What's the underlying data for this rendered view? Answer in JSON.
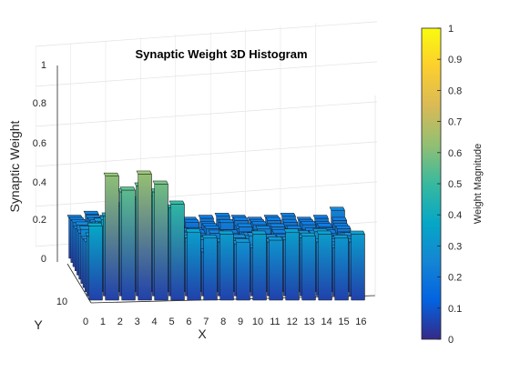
{
  "chart_data": {
    "type": "bar3",
    "title": "Synaptic Weight 3D Histogram",
    "xlabel": "X",
    "ylabel": "Y",
    "zlabel": "Synaptic Weight",
    "xlim": [
      0,
      16
    ],
    "ylim": [
      0,
      10
    ],
    "zlim": [
      0,
      1
    ],
    "x_ticks": [
      "0",
      "1",
      "2",
      "3",
      "4",
      "5",
      "6",
      "7",
      "8",
      "9",
      "10",
      "11",
      "12",
      "13",
      "14",
      "15",
      "16"
    ],
    "y_ticks": [
      "10"
    ],
    "z_ticks": [
      "0",
      "0.2",
      "0.4",
      "0.6",
      "0.8",
      "1"
    ],
    "colormap": "parula",
    "colorbar": {
      "label": "Weight Magnitude",
      "range": [
        0,
        1
      ],
      "ticks": [
        "0",
        "0.1",
        "0.2",
        "0.3",
        "0.4",
        "0.5",
        "0.6",
        "0.7",
        "0.8",
        "0.9",
        "1"
      ]
    },
    "grid": true,
    "rows": [
      [
        0.37,
        0.62,
        0.55,
        0.63,
        0.58,
        0.48,
        0.34,
        0.31,
        0.33,
        0.29,
        0.33,
        0.3,
        0.34,
        0.32,
        0.33,
        0.31,
        0.33
      ],
      [
        0.3,
        0.4,
        0.52,
        0.55,
        0.52,
        0.44,
        0.29,
        0.22,
        0.27,
        0.26,
        0.24,
        0.27,
        0.28,
        0.29,
        0.27,
        0.24,
        0.27
      ],
      [
        0.25,
        0.36,
        0.43,
        0.46,
        0.48,
        0.41,
        0.25,
        0.26,
        0.23,
        0.27,
        0.28,
        0.22,
        0.26,
        0.24,
        0.3,
        0.25,
        0.24
      ],
      [
        0.24,
        0.31,
        0.38,
        0.39,
        0.41,
        0.38,
        0.23,
        0.2,
        0.22,
        0.23,
        0.21,
        0.25,
        0.22,
        0.27,
        0.22,
        0.23,
        0.26
      ],
      [
        0.27,
        0.28,
        0.33,
        0.32,
        0.35,
        0.32,
        0.24,
        0.22,
        0.2,
        0.21,
        0.24,
        0.2,
        0.23,
        0.21,
        0.25,
        0.22,
        0.24
      ],
      [
        0.23,
        0.29,
        0.3,
        0.29,
        0.31,
        0.3,
        0.21,
        0.19,
        0.23,
        0.2,
        0.22,
        0.21,
        0.19,
        0.23,
        0.21,
        0.2,
        0.22
      ],
      [
        0.25,
        0.25,
        0.27,
        0.26,
        0.29,
        0.27,
        0.22,
        0.21,
        0.18,
        0.21,
        0.2,
        0.23,
        0.21,
        0.2,
        0.22,
        0.21,
        0.2
      ],
      [
        0.21,
        0.24,
        0.26,
        0.25,
        0.27,
        0.25,
        0.19,
        0.2,
        0.21,
        0.19,
        0.22,
        0.19,
        0.22,
        0.21,
        0.19,
        0.2,
        0.21
      ],
      [
        0.22,
        0.23,
        0.24,
        0.24,
        0.25,
        0.24,
        0.2,
        0.18,
        0.2,
        0.22,
        0.19,
        0.21,
        0.2,
        0.19,
        0.21,
        0.2,
        0.2
      ],
      [
        0.21,
        0.22,
        0.21,
        0.22,
        0.23,
        0.22,
        0.19,
        0.2,
        0.19,
        0.2,
        0.21,
        0.2,
        0.21,
        0.2,
        0.2,
        0.19,
        0.21
      ],
      [
        0.2,
        0.22,
        0.2,
        0.21,
        0.22,
        0.21,
        0.18,
        0.19,
        0.2,
        0.21,
        0.2,
        0.19,
        0.2,
        0.21,
        0.19,
        0.2,
        0.24
      ]
    ]
  }
}
